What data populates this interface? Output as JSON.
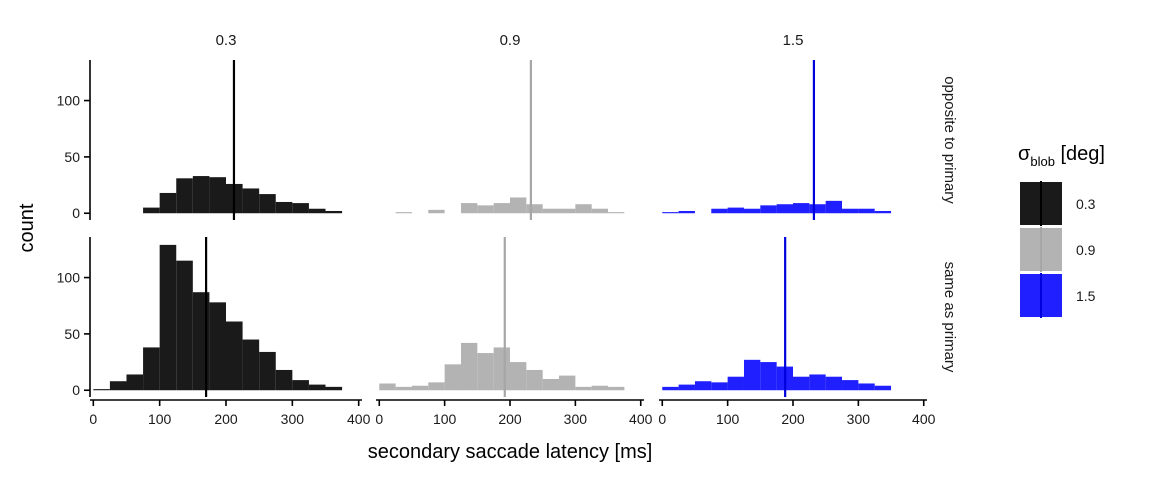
{
  "chart_data": {
    "type": "bar",
    "subtype": "faceted-histogram",
    "xlabel": "secondary saccade latency [ms]",
    "ylabel": "count",
    "xlim": [
      -5,
      405
    ],
    "ylim": [
      -6,
      136
    ],
    "x_ticks": [
      0,
      100,
      200,
      300,
      400
    ],
    "y_ticks": [
      0,
      50,
      100
    ],
    "bin_width": 25,
    "grid": false,
    "legend": {
      "title_symbol": "σ",
      "title_subscript": "blob",
      "title_suffix": " [deg]",
      "placement": "right",
      "entries": [
        {
          "label": "0.3",
          "color": "#1a1a1a",
          "line_color": "#000000"
        },
        {
          "label": "0.9",
          "color": "#b3b3b3",
          "line_color": "#a6a6a6"
        },
        {
          "label": "1.5",
          "color": "#0000ff",
          "line_color": "#0000dd"
        }
      ]
    },
    "columns": [
      "0.3",
      "0.9",
      "1.5"
    ],
    "rows": [
      "opposite to primary",
      "same as primary"
    ],
    "facets": [
      {
        "row": 0,
        "col": 0,
        "sigma": "0.3",
        "median": 212,
        "bins": [
          [
            87.5,
            5
          ],
          [
            112.5,
            18
          ],
          [
            137.5,
            31
          ],
          [
            162.5,
            33
          ],
          [
            187.5,
            32
          ],
          [
            212.5,
            26
          ],
          [
            237.5,
            22
          ],
          [
            262.5,
            17
          ],
          [
            287.5,
            10
          ],
          [
            312.5,
            9
          ],
          [
            337.5,
            4
          ],
          [
            362.5,
            2
          ]
        ]
      },
      {
        "row": 0,
        "col": 1,
        "sigma": "0.9",
        "median": 232,
        "bins": [
          [
            37.5,
            1
          ],
          [
            87.5,
            3
          ],
          [
            137.5,
            9
          ],
          [
            162.5,
            7
          ],
          [
            187.5,
            9
          ],
          [
            212.5,
            14
          ],
          [
            237.5,
            8
          ],
          [
            262.5,
            4
          ],
          [
            287.5,
            4
          ],
          [
            312.5,
            8
          ],
          [
            337.5,
            4
          ],
          [
            362.5,
            1
          ]
        ]
      },
      {
        "row": 0,
        "col": 2,
        "sigma": "1.5",
        "median": 232,
        "bins": [
          [
            12.5,
            1
          ],
          [
            37.5,
            2
          ],
          [
            87.5,
            4
          ],
          [
            112.5,
            5
          ],
          [
            137.5,
            4
          ],
          [
            162.5,
            7
          ],
          [
            187.5,
            8
          ],
          [
            212.5,
            9
          ],
          [
            237.5,
            8
          ],
          [
            262.5,
            11
          ],
          [
            287.5,
            4
          ],
          [
            312.5,
            4
          ],
          [
            337.5,
            2
          ]
        ]
      },
      {
        "row": 1,
        "col": 0,
        "sigma": "0.3",
        "median": 170,
        "bins": [
          [
            12.5,
            1
          ],
          [
            37.5,
            8
          ],
          [
            62.5,
            14
          ],
          [
            87.5,
            38
          ],
          [
            112.5,
            129
          ],
          [
            137.5,
            115
          ],
          [
            162.5,
            87
          ],
          [
            187.5,
            78
          ],
          [
            212.5,
            61
          ],
          [
            237.5,
            45
          ],
          [
            262.5,
            34
          ],
          [
            287.5,
            18
          ],
          [
            312.5,
            9
          ],
          [
            337.5,
            5
          ],
          [
            362.5,
            3
          ]
        ]
      },
      {
        "row": 1,
        "col": 1,
        "sigma": "0.9",
        "median": 192,
        "bins": [
          [
            12.5,
            6
          ],
          [
            37.5,
            3
          ],
          [
            62.5,
            4
          ],
          [
            87.5,
            7
          ],
          [
            112.5,
            23
          ],
          [
            137.5,
            42
          ],
          [
            162.5,
            33
          ],
          [
            187.5,
            38
          ],
          [
            212.5,
            25
          ],
          [
            237.5,
            18
          ],
          [
            262.5,
            10
          ],
          [
            287.5,
            13
          ],
          [
            312.5,
            3
          ],
          [
            337.5,
            4
          ],
          [
            362.5,
            3
          ]
        ]
      },
      {
        "row": 1,
        "col": 2,
        "sigma": "1.5",
        "median": 188,
        "bins": [
          [
            12.5,
            3
          ],
          [
            37.5,
            5
          ],
          [
            62.5,
            8
          ],
          [
            87.5,
            7
          ],
          [
            112.5,
            12
          ],
          [
            137.5,
            27
          ],
          [
            162.5,
            25
          ],
          [
            187.5,
            21
          ],
          [
            212.5,
            12
          ],
          [
            237.5,
            14
          ],
          [
            262.5,
            12
          ],
          [
            287.5,
            9
          ],
          [
            312.5,
            6
          ],
          [
            337.5,
            4
          ]
        ]
      }
    ]
  }
}
